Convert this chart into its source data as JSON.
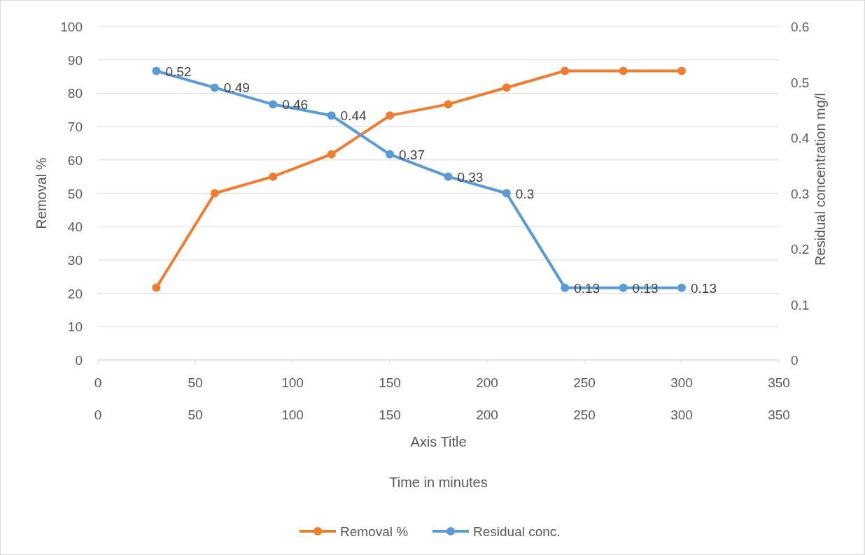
{
  "chart_data": {
    "type": "line",
    "xlabel": "Axis Title",
    "x2label": "Time in minutes",
    "ylabel": "Removal %",
    "y2label": "Residual concentration mg/l",
    "x": [
      30,
      60,
      90,
      120,
      150,
      180,
      210,
      240,
      270,
      300
    ],
    "series": [
      {
        "name": "Removal %",
        "color": "#ed7d31",
        "values": [
          21.7,
          50,
          55,
          61.7,
          73.3,
          76.7,
          81.7,
          86.7,
          86.7,
          86.7
        ]
      },
      {
        "name": "Residual conc.",
        "color": "#5b9bd5",
        "axis": "y2",
        "values": [
          0.52,
          0.49,
          0.46,
          0.44,
          0.37,
          0.33,
          0.3,
          0.13,
          0.13,
          0.13
        ],
        "value_labels": [
          "0.52",
          "0.49",
          "0.46",
          "0.44",
          "0.37",
          "0.33",
          "0.3",
          "0.13",
          "0.13",
          "0.13"
        ]
      }
    ],
    "xlim": [
      0,
      350
    ],
    "xticks": [
      0,
      50,
      100,
      150,
      200,
      250,
      300,
      350
    ],
    "x2lim": [
      0,
      350
    ],
    "x2ticks": [
      0,
      50,
      100,
      150,
      200,
      250,
      300,
      350
    ],
    "ylim": [
      0,
      100
    ],
    "yticks": [
      0,
      10,
      20,
      30,
      40,
      50,
      60,
      70,
      80,
      90,
      100
    ],
    "y2lim": [
      0,
      0.6
    ],
    "y2ticks": [
      0,
      0.1,
      0.2,
      0.3,
      0.4,
      0.5,
      0.6
    ],
    "grid": "y",
    "legend": "bottom",
    "marker": "circle",
    "line_style": "solid"
  }
}
